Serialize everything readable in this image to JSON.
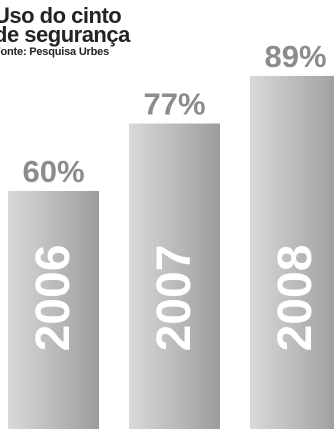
{
  "chart_data": {
    "type": "bar",
    "title_lines": [
      "Uso do cinto",
      "de segurança"
    ],
    "source": "Fonte: Pesquisa Urbes",
    "categories": [
      "2006",
      "2007",
      "2008"
    ],
    "values": [
      60,
      77,
      89
    ],
    "value_labels": [
      "60%",
      "77%",
      "89%"
    ],
    "xlabel": "",
    "ylabel": "",
    "ylim": [
      0,
      100
    ],
    "grid": false,
    "legend": "none",
    "colors": {
      "bar_light": "#d9d9d9",
      "bar_dark": "#9c9c9c",
      "value_label": "#8c8c8c",
      "category_label": "#ffffff",
      "title": "#232323"
    }
  }
}
